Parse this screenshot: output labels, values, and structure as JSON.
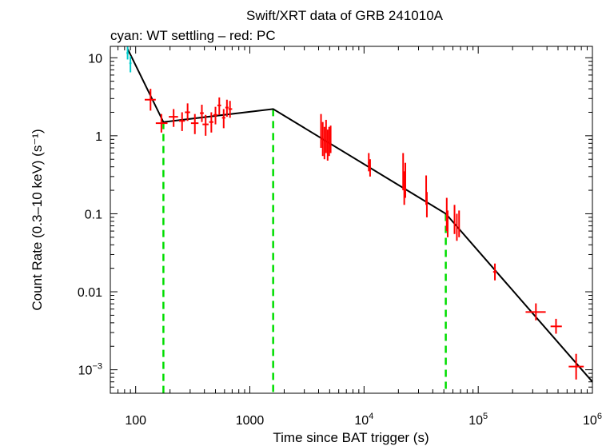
{
  "chart_data": {
    "type": "scatter",
    "title": "Swift/XRT data of GRB 241010A",
    "subtitle": "cyan: WT settling – red: PC",
    "xlabel": "Time since BAT trigger (s)",
    "ylabel": "Count Rate (0.3–10 keV) (s⁻¹)",
    "xscale": "log",
    "yscale": "log",
    "xlim": [
      60,
      1000000
    ],
    "ylim": [
      0.0005,
      14
    ],
    "grid": false,
    "legend": "none",
    "x_ticks": [
      {
        "value": 100,
        "label": "100",
        "exp": ""
      },
      {
        "value": 1000,
        "label": "1000",
        "exp": ""
      },
      {
        "value": 10000,
        "label": "10",
        "exp": "4"
      },
      {
        "value": 100000,
        "label": "10",
        "exp": "5"
      },
      {
        "value": 1000000,
        "label": "10",
        "exp": "6"
      }
    ],
    "y_ticks": [
      {
        "value": 10,
        "label": "10",
        "exp": ""
      },
      {
        "value": 1,
        "label": "1",
        "exp": ""
      },
      {
        "value": 0.1,
        "label": "0.1",
        "exp": ""
      },
      {
        "value": 0.01,
        "label": "0.01",
        "exp": ""
      },
      {
        "value": 0.001,
        "label": "10",
        "exp": "−3"
      }
    ],
    "series": [
      {
        "name": "WT settling",
        "color": "#00cccc",
        "points": [
          {
            "x": 85,
            "y": 11.5,
            "xerr": [
              83,
              87
            ],
            "yerr": [
              9.5,
              14
            ]
          },
          {
            "x": 90,
            "y": 8.5,
            "xerr": [
              88,
              92
            ],
            "yerr": [
              6.5,
              10.5
            ]
          }
        ]
      },
      {
        "name": "PC",
        "color": "#ff0000",
        "points": [
          {
            "x": 135,
            "y": 2.9,
            "xerr": [
              120,
              150
            ],
            "yerr": [
              2.1,
              4.0
            ]
          },
          {
            "x": 168,
            "y": 1.45,
            "xerr": [
              150,
              190
            ],
            "yerr": [
              1.1,
              1.9
            ]
          },
          {
            "x": 215,
            "y": 1.75,
            "xerr": [
              195,
              235
            ],
            "yerr": [
              1.3,
              2.2
            ]
          },
          {
            "x": 255,
            "y": 1.55,
            "xerr": [
              240,
              270
            ],
            "yerr": [
              1.15,
              2.0
            ]
          },
          {
            "x": 285,
            "y": 2.0,
            "xerr": [
              270,
              300
            ],
            "yerr": [
              1.55,
              2.6
            ]
          },
          {
            "x": 330,
            "y": 1.45,
            "xerr": [
              305,
              355
            ],
            "yerr": [
              1.05,
              1.9
            ]
          },
          {
            "x": 380,
            "y": 1.95,
            "xerr": [
              365,
              395
            ],
            "yerr": [
              1.5,
              2.5
            ]
          },
          {
            "x": 410,
            "y": 1.4,
            "xerr": [
              385,
              435
            ],
            "yerr": [
              1.0,
              1.85
            ]
          },
          {
            "x": 460,
            "y": 1.5,
            "xerr": [
              440,
              480
            ],
            "yerr": [
              1.1,
              2.0
            ]
          },
          {
            "x": 500,
            "y": 1.85,
            "xerr": [
              480,
              520
            ],
            "yerr": [
              1.4,
              2.35
            ]
          },
          {
            "x": 540,
            "y": 2.45,
            "xerr": [
              520,
              560
            ],
            "yerr": [
              1.85,
              3.1
            ]
          },
          {
            "x": 590,
            "y": 1.7,
            "xerr": [
              570,
              610
            ],
            "yerr": [
              1.25,
              2.2
            ]
          },
          {
            "x": 630,
            "y": 2.3,
            "xerr": [
              610,
              650
            ],
            "yerr": [
              1.75,
              2.9
            ]
          },
          {
            "x": 670,
            "y": 2.2,
            "xerr": [
              650,
              700
            ],
            "yerr": [
              1.7,
              2.8
            ]
          },
          {
            "x": 4200,
            "y": 1.2,
            "xerr": [
              4150,
              4250
            ],
            "yerr": [
              0.7,
              1.9
            ]
          },
          {
            "x": 4350,
            "y": 0.9,
            "xerr": [
              4300,
              4400
            ],
            "yerr": [
              0.55,
              1.5
            ]
          },
          {
            "x": 4500,
            "y": 0.8,
            "xerr": [
              4450,
              4550
            ],
            "yerr": [
              0.5,
              1.3
            ]
          },
          {
            "x": 4650,
            "y": 1.0,
            "xerr": [
              4600,
              4700
            ],
            "yerr": [
              0.6,
              1.6
            ]
          },
          {
            "x": 4800,
            "y": 0.75,
            "xerr": [
              4750,
              4850
            ],
            "yerr": [
              0.48,
              1.2
            ]
          },
          {
            "x": 4950,
            "y": 0.85,
            "xerr": [
              4900,
              5000
            ],
            "yerr": [
              0.55,
              1.3
            ]
          },
          {
            "x": 5100,
            "y": 0.9,
            "xerr": [
              5050,
              5150
            ],
            "yerr": [
              0.6,
              1.35
            ]
          },
          {
            "x": 11000,
            "y": 0.45,
            "xerr": [
              10800,
              11200
            ],
            "yerr": [
              0.35,
              0.6
            ]
          },
          {
            "x": 11300,
            "y": 0.4,
            "xerr": [
              11150,
              11450
            ],
            "yerr": [
              0.3,
              0.5
            ]
          },
          {
            "x": 22000,
            "y": 0.35,
            "xerr": [
              21800,
              22200
            ],
            "yerr": [
              0.2,
              0.6
            ]
          },
          {
            "x": 22500,
            "y": 0.22,
            "xerr": [
              22300,
              22700
            ],
            "yerr": [
              0.13,
              0.35
            ]
          },
          {
            "x": 23000,
            "y": 0.28,
            "xerr": [
              22800,
              23200
            ],
            "yerr": [
              0.16,
              0.45
            ]
          },
          {
            "x": 35000,
            "y": 0.2,
            "xerr": [
              34700,
              35300
            ],
            "yerr": [
              0.13,
              0.31
            ]
          },
          {
            "x": 35500,
            "y": 0.13,
            "xerr": [
              35200,
              35800
            ],
            "yerr": [
              0.09,
              0.19
            ]
          },
          {
            "x": 53000,
            "y": 0.1,
            "xerr": [
              52500,
              53500
            ],
            "yerr": [
              0.06,
              0.16
            ]
          },
          {
            "x": 54000,
            "y": 0.075,
            "xerr": [
              53500,
              54500
            ],
            "yerr": [
              0.05,
              0.11
            ]
          },
          {
            "x": 62000,
            "y": 0.085,
            "xerr": [
              61500,
              62500
            ],
            "yerr": [
              0.055,
              0.13
            ]
          },
          {
            "x": 65000,
            "y": 0.065,
            "xerr": [
              64500,
              65500
            ],
            "yerr": [
              0.045,
              0.1
            ]
          },
          {
            "x": 68000,
            "y": 0.075,
            "xerr": [
              67500,
              68500
            ],
            "yerr": [
              0.05,
              0.11
            ]
          },
          {
            "x": 140000,
            "y": 0.018,
            "xerr": [
              135000,
              145000
            ],
            "yerr": [
              0.014,
              0.023
            ]
          },
          {
            "x": 320000,
            "y": 0.0055,
            "xerr": [
              260000,
              390000
            ],
            "yerr": [
              0.0043,
              0.0071
            ]
          },
          {
            "x": 480000,
            "y": 0.0036,
            "xerr": [
              430000,
              540000
            ],
            "yerr": [
              0.0029,
              0.0045
            ]
          },
          {
            "x": 720000,
            "y": 0.0011,
            "xerr": [
              620000,
              840000
            ],
            "yerr": [
              0.00075,
              0.0016
            ]
          }
        ]
      }
    ],
    "model": {
      "name": "broken power-law fit",
      "color": "#000000",
      "points": [
        {
          "x": 85,
          "y": 13
        },
        {
          "x": 175,
          "y": 1.5
        },
        {
          "x": 1600,
          "y": 2.2
        },
        {
          "x": 52000,
          "y": 0.1
        },
        {
          "x": 1000000,
          "y": 0.0007
        }
      ]
    },
    "breaks": {
      "color": "#00dd00",
      "x": [
        175,
        1600,
        52000
      ]
    }
  }
}
